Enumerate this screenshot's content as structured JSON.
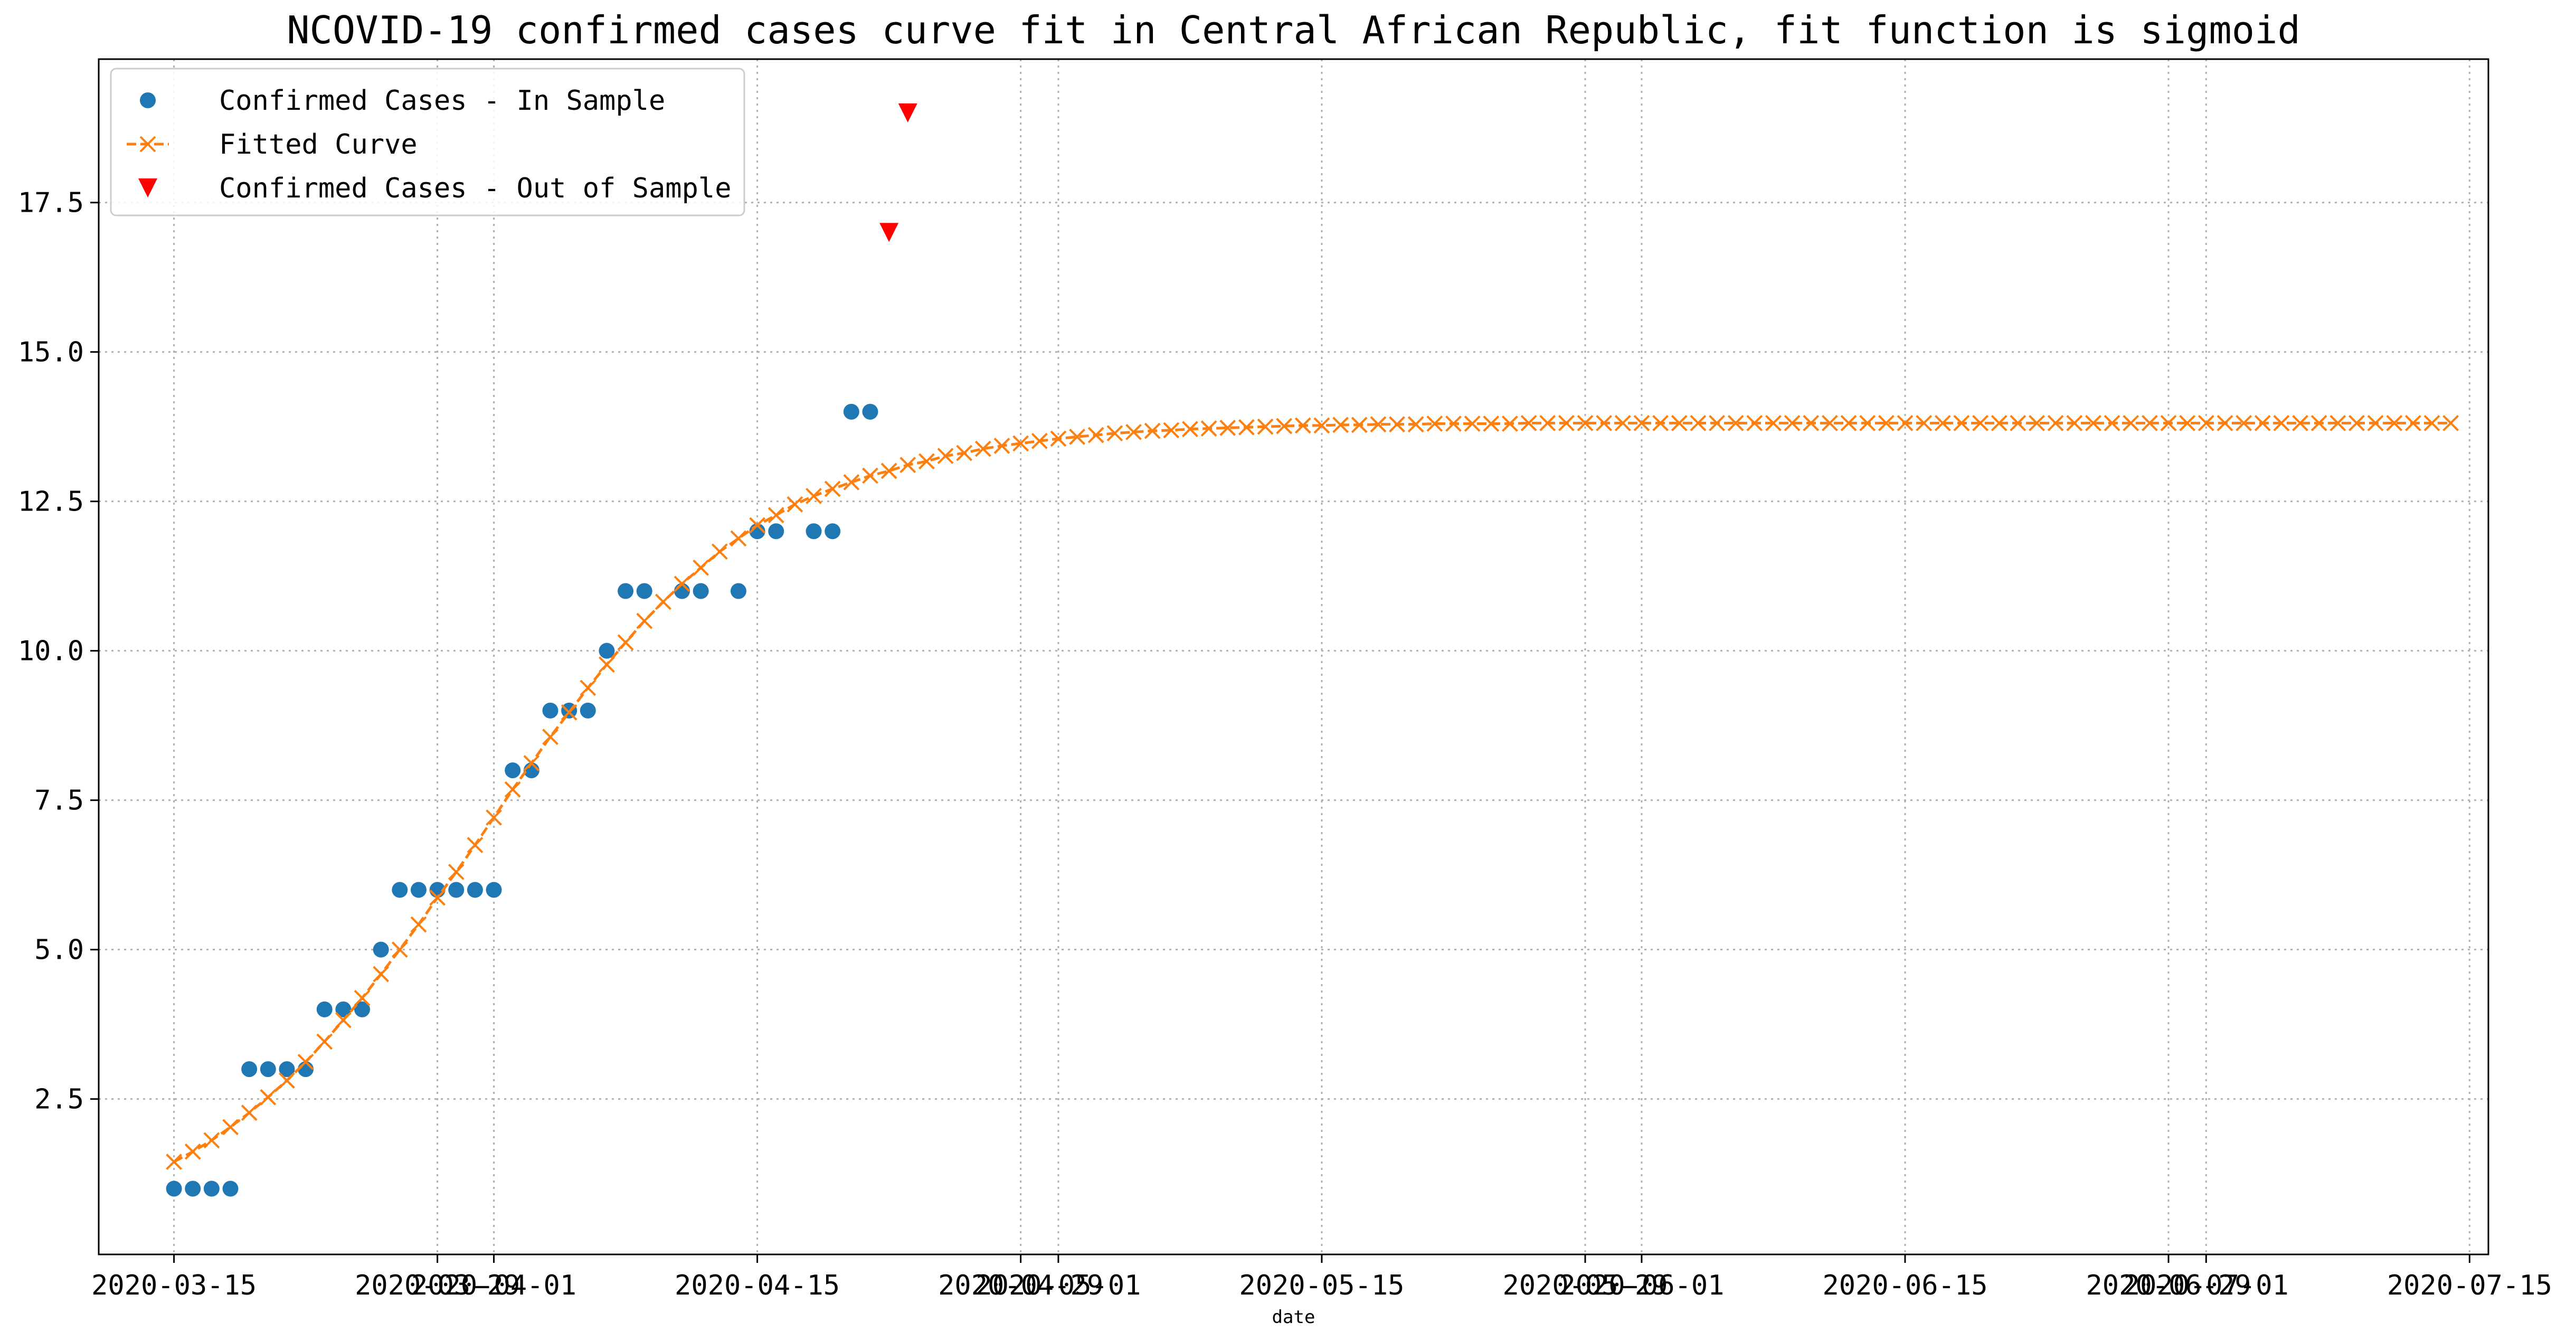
{
  "chart_data": {
    "type": "scatter",
    "title": "NCOVID-19 confirmed cases curve fit in Central African Republic, fit function is sigmoid",
    "xlabel": "date",
    "ylabel": "",
    "grid": true,
    "legend_position": "top-left",
    "x_is_date": true,
    "xlim": [
      "2020-03-11",
      "2020-07-16"
    ],
    "ylim": [
      -0.1,
      19.9
    ],
    "x_tick_labels": [
      "2020-03-15",
      "2020-03-29",
      "2020-04-01",
      "2020-04-15",
      "2020-04-29",
      "2020-05-01",
      "2020-05-15",
      "2020-05-29",
      "2020-06-01",
      "2020-06-15",
      "2020-06-29",
      "2020-07-01",
      "2020-07-15"
    ],
    "y_ticks": [
      "2.5",
      "5.0",
      "7.5",
      "10.0",
      "12.5",
      "15.0",
      "17.5"
    ],
    "legend": [
      "Confirmed Cases - In Sample",
      "Fitted Curve",
      "Confirmed Cases - Out of Sample"
    ],
    "series": [
      {
        "name": "Confirmed Cases - In Sample",
        "kind": "scatter",
        "marker": "circle",
        "color": "#1f77b4",
        "points": [
          [
            "2020-03-15",
            1
          ],
          [
            "2020-03-16",
            1
          ],
          [
            "2020-03-17",
            1
          ],
          [
            "2020-03-18",
            1
          ],
          [
            "2020-03-19",
            3
          ],
          [
            "2020-03-20",
            3
          ],
          [
            "2020-03-21",
            3
          ],
          [
            "2020-03-22",
            3
          ],
          [
            "2020-03-23",
            4
          ],
          [
            "2020-03-24",
            4
          ],
          [
            "2020-03-25",
            4
          ],
          [
            "2020-03-26",
            5
          ],
          [
            "2020-03-27",
            6
          ],
          [
            "2020-03-28",
            6
          ],
          [
            "2020-03-29",
            6
          ],
          [
            "2020-03-30",
            6
          ],
          [
            "2020-03-31",
            6
          ],
          [
            "2020-04-01",
            6
          ],
          [
            "2020-04-02",
            8
          ],
          [
            "2020-04-03",
            8
          ],
          [
            "2020-04-04",
            9
          ],
          [
            "2020-04-05",
            9
          ],
          [
            "2020-04-06",
            9
          ],
          [
            "2020-04-07",
            10
          ],
          [
            "2020-04-08",
            11
          ],
          [
            "2020-04-09",
            11
          ],
          [
            "2020-04-11",
            11
          ],
          [
            "2020-04-12",
            11
          ],
          [
            "2020-04-14",
            11
          ],
          [
            "2020-04-15",
            12
          ],
          [
            "2020-04-16",
            12
          ],
          [
            "2020-04-18",
            12
          ],
          [
            "2020-04-19",
            12
          ],
          [
            "2020-04-20",
            14
          ],
          [
            "2020-04-21",
            14
          ]
        ]
      },
      {
        "name": "Fitted Curve",
        "kind": "line",
        "marker": "x",
        "dash": "dashed",
        "color": "#ff7f0e",
        "x_start": "2020-03-15",
        "x_step_days": 1,
        "y": [
          1.45,
          1.62,
          1.81,
          2.03,
          2.27,
          2.53,
          2.81,
          3.12,
          3.46,
          3.82,
          4.19,
          4.59,
          5.0,
          5.42,
          5.87,
          6.3,
          6.75,
          7.21,
          7.68,
          8.12,
          8.56,
          8.97,
          9.38,
          9.77,
          10.14,
          10.5,
          10.82,
          11.12,
          11.39,
          11.66,
          11.88,
          12.1,
          12.27,
          12.45,
          12.59,
          12.71,
          12.82,
          12.93,
          13.01,
          13.11,
          13.17,
          13.26,
          13.31,
          13.38,
          13.43,
          13.47,
          13.51,
          13.55,
          13.58,
          13.61,
          13.64,
          13.66,
          13.68,
          13.69,
          13.71,
          13.72,
          13.73,
          13.74,
          13.75,
          13.76,
          13.77,
          13.77,
          13.78,
          13.78,
          13.79,
          13.79,
          13.79,
          13.8,
          13.8,
          13.8,
          13.8,
          13.8,
          13.81,
          13.81,
          13.81,
          13.81,
          13.81,
          13.81,
          13.81,
          13.81,
          13.81,
          13.81,
          13.81,
          13.81,
          13.81,
          13.81,
          13.81,
          13.81,
          13.81,
          13.81,
          13.81,
          13.81,
          13.81,
          13.81,
          13.81,
          13.81,
          13.81,
          13.81,
          13.81,
          13.81,
          13.81,
          13.81,
          13.81,
          13.81,
          13.81,
          13.81,
          13.81,
          13.81,
          13.81,
          13.81,
          13.81,
          13.81,
          13.81,
          13.81,
          13.81,
          13.81,
          13.81,
          13.81,
          13.81,
          13.81,
          13.81,
          13.81
        ]
      },
      {
        "name": "Confirmed Cases - Out of Sample",
        "kind": "scatter",
        "marker": "triangle-down",
        "color": "#ff0000",
        "points": [
          [
            "2020-04-22",
            17
          ],
          [
            "2020-04-23",
            19
          ]
        ]
      }
    ]
  }
}
